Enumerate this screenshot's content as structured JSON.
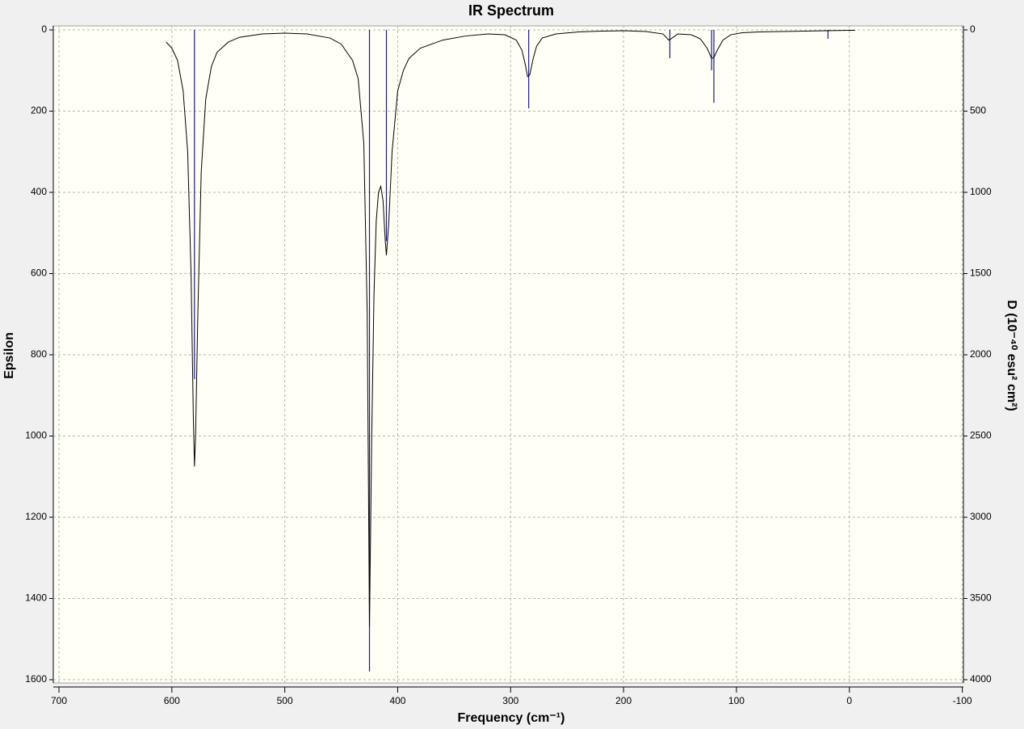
{
  "chart_data": {
    "type": "line",
    "title": "IR Spectrum",
    "x_label": "Frequency (cm⁻¹)",
    "y_label": "Epsilon",
    "y2_label": "D (10⁻⁴⁰ esu² cm²)",
    "xlim": [
      705,
      -101
    ],
    "xticks": [
      700,
      600,
      500,
      400,
      300,
      200,
      100,
      0,
      -100
    ],
    "ylim": [
      -10,
      1608
    ],
    "yticks": [
      0,
      200,
      400,
      600,
      800,
      1000,
      1200,
      1400,
      1600
    ],
    "y2lim": [
      -25,
      4020
    ],
    "y2ticks": [
      0,
      500,
      1000,
      1500,
      2000,
      2500,
      3000,
      3500,
      4000
    ],
    "grid": true,
    "y_inverted": true,
    "color": "#000000",
    "x": [
      605,
      600,
      595,
      590,
      586,
      583,
      581,
      580,
      579,
      577,
      574,
      570,
      565,
      560,
      550,
      540,
      520,
      500,
      480,
      460,
      450,
      440,
      435,
      430,
      427,
      425,
      423,
      421,
      419,
      417,
      415,
      413,
      411,
      410,
      408,
      405,
      400,
      395,
      390,
      380,
      360,
      340,
      320,
      305,
      295,
      290,
      287,
      285,
      283,
      280,
      277,
      272,
      260,
      240,
      220,
      200,
      180,
      165,
      160,
      158,
      152,
      140,
      132,
      126,
      122,
      120,
      117,
      112,
      105,
      95,
      80,
      60,
      40,
      20,
      0,
      -5
    ],
    "values": [
      30,
      45,
      75,
      150,
      300,
      600,
      950,
      1075,
      1000,
      700,
      350,
      170,
      90,
      55,
      30,
      18,
      10,
      8,
      10,
      20,
      35,
      75,
      120,
      280,
      700,
      1470,
      1000,
      650,
      470,
      400,
      385,
      420,
      520,
      555,
      480,
      300,
      150,
      100,
      70,
      45,
      25,
      15,
      10,
      12,
      25,
      50,
      85,
      115,
      110,
      70,
      40,
      20,
      10,
      5,
      3,
      2,
      4,
      10,
      25,
      22,
      10,
      12,
      22,
      45,
      70,
      68,
      50,
      25,
      12,
      7,
      5,
      4,
      3,
      2,
      1,
      1
    ],
    "sticks": {
      "axis": "y2",
      "color": "#1a1a8c",
      "x": [
        580,
        425,
        410,
        284,
        159,
        122,
        120,
        19
      ],
      "values": [
        2150,
        3950,
        1300,
        483,
        174,
        248,
        448,
        55
      ]
    }
  }
}
